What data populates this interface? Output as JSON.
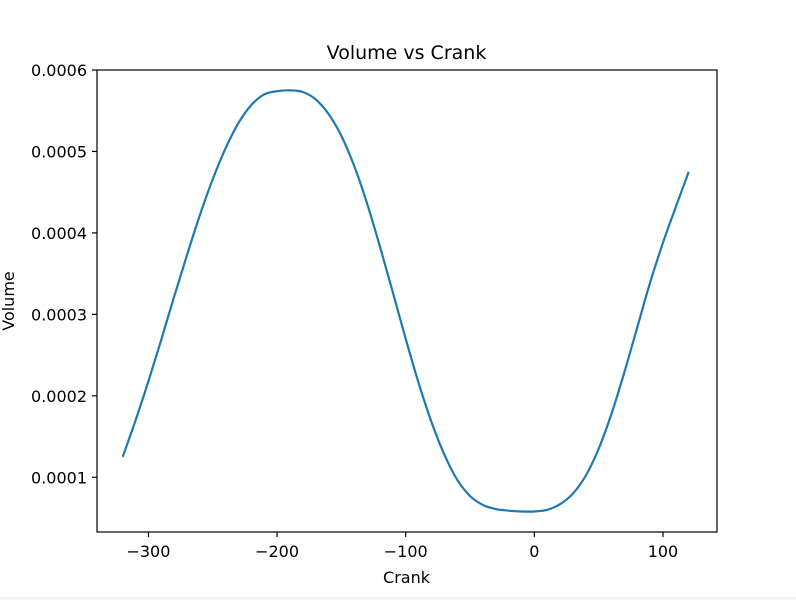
{
  "chart_data": {
    "type": "line",
    "title": "Volume vs Crank",
    "xlabel": "Crank",
    "ylabel": "Volume",
    "xlim": [
      -340,
      142
    ],
    "ylim": [
      3.28e-05,
      0.0006
    ],
    "xticks": [
      -300,
      -200,
      -100,
      0,
      100
    ],
    "xtick_labels": [
      "−300",
      "−200",
      "−100",
      "0",
      "100"
    ],
    "yticks": [
      0.0001,
      0.0002,
      0.0003,
      0.0004,
      0.0005,
      0.0006
    ],
    "ytick_labels": [
      "0.0001",
      "0.0002",
      "0.0003",
      "0.0004",
      "0.0005",
      "0.0006"
    ],
    "grid": false,
    "series": [
      {
        "color": "#1f77b4",
        "x": [
          -320,
          -310,
          -300,
          -290,
          -280,
          -270,
          -260,
          -250,
          -240,
          -230,
          -220,
          -210,
          -200,
          -190,
          -180,
          -170,
          -160,
          -150,
          -140,
          -130,
          -120,
          -110,
          -100,
          -90,
          -80,
          -70,
          -60,
          -50,
          -40,
          -30,
          -20,
          -10,
          0,
          10,
          20,
          30,
          40,
          50,
          60,
          70,
          80,
          90,
          100,
          110,
          120
        ],
        "y": [
          0.000125,
          0.00017,
          0.000218,
          0.000269,
          0.000322,
          0.000373,
          0.000422,
          0.000466,
          0.000504,
          0.000535,
          0.000557,
          0.00057,
          0.000574,
          0.000575,
          0.000573,
          0.000564,
          0.000546,
          0.000519,
          0.000482,
          0.000436,
          0.000383,
          0.000327,
          0.00027,
          0.000216,
          0.000168,
          0.000128,
          9.7e-05,
          7.7e-05,
          6.6e-05,
          6.1e-05,
          5.9e-05,
          5.8e-05,
          5.8e-05,
          6e-05,
          6.7e-05,
          8e-05,
          0.000102,
          0.000135,
          0.000178,
          0.000229,
          0.000284,
          0.000339,
          0.000388,
          0.000432,
          0.000475
        ]
      }
    ]
  }
}
